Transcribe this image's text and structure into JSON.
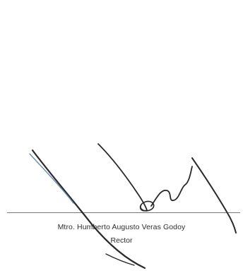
{
  "signature_block": {
    "signer_name": "Mtro. Humberto Augusto Veras Godoy",
    "signer_title": "Rector",
    "line_color": "#4a7fc8",
    "ink_color": "#2a2a2a"
  }
}
